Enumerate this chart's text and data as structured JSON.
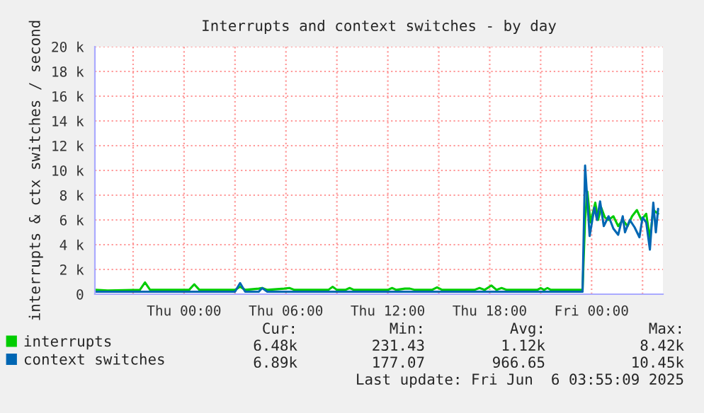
{
  "chart_data": {
    "type": "line",
    "title": "Interrupts and context switches - by day",
    "ylabel": "interrupts & ctx switches / second",
    "xlim": [
      "2025-06-04T18:45",
      "2025-06-06T04:12"
    ],
    "xticks": [
      {
        "value": "2025-06-04T21:00",
        "label": null
      },
      {
        "value": "2025-06-05T00:00",
        "label": "Thu 00:00"
      },
      {
        "value": "2025-06-05T03:00",
        "label": null
      },
      {
        "value": "2025-06-05T06:00",
        "label": "Thu 06:00"
      },
      {
        "value": "2025-06-05T09:00",
        "label": null
      },
      {
        "value": "2025-06-05T12:00",
        "label": "Thu 12:00"
      },
      {
        "value": "2025-06-05T15:00",
        "label": null
      },
      {
        "value": "2025-06-05T18:00",
        "label": "Thu 18:00"
      },
      {
        "value": "2025-06-05T21:00",
        "label": null
      },
      {
        "value": "2025-06-06T00:00",
        "label": "Fri 00:00"
      },
      {
        "value": "2025-06-06T03:00",
        "label": null
      }
    ],
    "ylim": [
      0,
      20000
    ],
    "yticks": [
      0,
      {
        "value": 2000,
        "label": "2 k"
      },
      {
        "value": 4000,
        "label": "4 k"
      },
      {
        "value": 6000,
        "label": "6 k"
      },
      {
        "value": 8000,
        "label": "8 k"
      },
      {
        "value": 10000,
        "label": "10 k"
      },
      {
        "value": 12000,
        "label": "12 k"
      },
      {
        "value": 14000,
        "label": "14 k"
      },
      {
        "value": 16000,
        "label": "16 k"
      },
      {
        "value": 18000,
        "label": "18 k"
      },
      {
        "value": 20000,
        "label": "20 k"
      }
    ],
    "grid": true,
    "legend": "bottom",
    "marker": "none",
    "line_style": "solid",
    "series": [
      {
        "name": "interrupts",
        "color": "#00cc00",
        "x": [
          "2025-06-04T18:48",
          "2025-06-04T19:30",
          "2025-06-04T21:24",
          "2025-06-04T21:42",
          "2025-06-04T22:00",
          "2025-06-05T00:18",
          "2025-06-05T00:36",
          "2025-06-05T00:54",
          "2025-06-05T03:00",
          "2025-06-05T03:18",
          "2025-06-05T03:36",
          "2025-06-05T04:24",
          "2025-06-05T04:36",
          "2025-06-05T04:54",
          "2025-06-05T05:54",
          "2025-06-05T06:12",
          "2025-06-05T06:30",
          "2025-06-05T08:30",
          "2025-06-05T08:45",
          "2025-06-05T09:00",
          "2025-06-05T09:30",
          "2025-06-05T09:45",
          "2025-06-05T10:00",
          "2025-06-05T12:00",
          "2025-06-05T12:15",
          "2025-06-05T12:30",
          "2025-06-05T13:00",
          "2025-06-05T13:18",
          "2025-06-05T13:36",
          "2025-06-05T14:36",
          "2025-06-05T14:54",
          "2025-06-05T15:12",
          "2025-06-05T17:06",
          "2025-06-05T17:24",
          "2025-06-05T17:42",
          "2025-06-05T18:06",
          "2025-06-05T18:24",
          "2025-06-05T18:42",
          "2025-06-05T19:00",
          "2025-06-05T20:48",
          "2025-06-05T21:00",
          "2025-06-05T21:12",
          "2025-06-05T21:24",
          "2025-06-05T21:36",
          "2025-06-05T23:28",
          "2025-06-05T23:37",
          "2025-06-05T23:45",
          "2025-06-05T23:56",
          "2025-06-06T00:13",
          "2025-06-06T00:23",
          "2025-06-06T00:34",
          "2025-06-06T00:47",
          "2025-06-06T01:00",
          "2025-06-06T01:17",
          "2025-06-06T01:34",
          "2025-06-06T01:50",
          "2025-06-06T02:07",
          "2025-06-06T02:23",
          "2025-06-06T02:40",
          "2025-06-06T02:56",
          "2025-06-06T03:13",
          "2025-06-06T03:26",
          "2025-06-06T03:38",
          "2025-06-06T03:55"
        ],
        "values": [
          350,
          300,
          350,
          950,
          350,
          350,
          800,
          350,
          350,
          600,
          350,
          450,
          500,
          350,
          450,
          500,
          350,
          350,
          600,
          350,
          350,
          500,
          350,
          350,
          500,
          350,
          450,
          450,
          350,
          350,
          550,
          350,
          350,
          500,
          350,
          700,
          350,
          500,
          350,
          350,
          500,
          350,
          500,
          350,
          350,
          6000,
          8300,
          5800,
          7400,
          6000,
          7000,
          6200,
          6000,
          6300,
          5500,
          6000,
          5500,
          6300,
          6800,
          6000,
          6500,
          4500,
          6800,
          6500
        ]
      },
      {
        "name": "context switches",
        "color": "#0066b3",
        "x": [
          "2025-06-04T18:48",
          "2025-06-05T03:00",
          "2025-06-05T03:18",
          "2025-06-05T03:36",
          "2025-06-05T04:24",
          "2025-06-05T04:36",
          "2025-06-05T04:54",
          "2025-06-05T23:28",
          "2025-06-05T23:37",
          "2025-06-05T23:53",
          "2025-06-06T00:10",
          "2025-06-06T00:19",
          "2025-06-06T00:30",
          "2025-06-06T00:43",
          "2025-06-06T01:00",
          "2025-06-06T01:17",
          "2025-06-06T01:34",
          "2025-06-06T01:50",
          "2025-06-06T01:58",
          "2025-06-06T02:15",
          "2025-06-06T02:32",
          "2025-06-06T02:49",
          "2025-06-06T03:00",
          "2025-06-06T03:13",
          "2025-06-06T03:26",
          "2025-06-06T03:38",
          "2025-06-06T03:47",
          "2025-06-06T03:55"
        ],
        "values": [
          200,
          200,
          900,
          200,
          200,
          500,
          200,
          200,
          10400,
          4700,
          7000,
          6000,
          7500,
          5500,
          6300,
          5300,
          4800,
          6300,
          5000,
          6000,
          5400,
          4600,
          6200,
          5800,
          3600,
          7400,
          5000,
          6900
        ]
      }
    ],
    "annotations": [
      "Cur:",
      "Min:",
      "Avg:",
      "Max:",
      "6.48k",
      "231.43",
      "1.12k",
      "8.42k",
      "6.89k",
      "177.07",
      "966.65",
      "10.45k",
      "Last update: Fri Jun  6 03:55:09 2025"
    ]
  }
}
